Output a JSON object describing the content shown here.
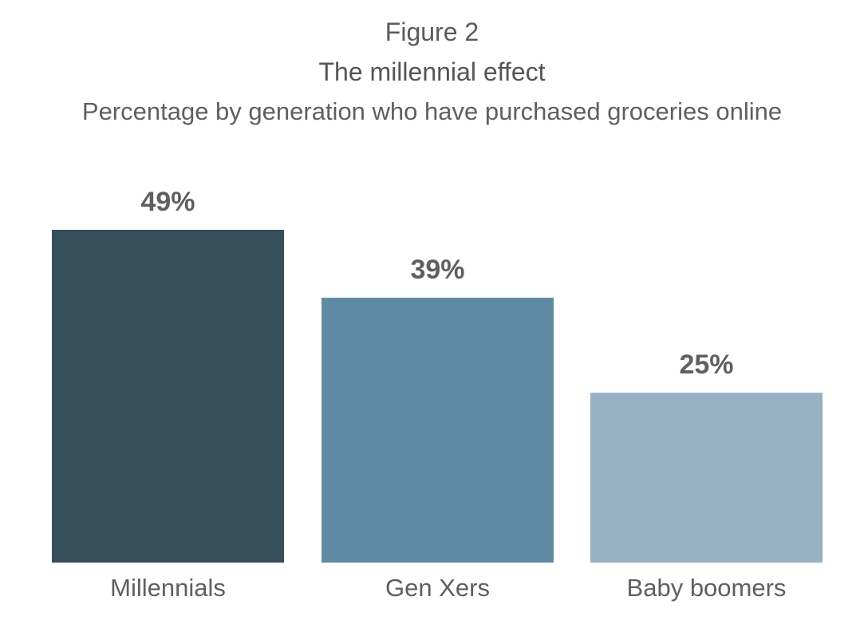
{
  "figure_label": "Figure 2",
  "title": "The millennial effect",
  "subtitle": "Percentage by generation who have purchased groceries online",
  "chart_data": {
    "type": "bar",
    "categories": [
      "Millennials",
      "Gen Xers",
      "Baby boomers"
    ],
    "values": [
      49,
      39,
      25
    ],
    "value_labels": [
      "49%",
      "39%",
      "25%"
    ],
    "colors": [
      "#374e5b",
      "#5f8aa3",
      "#97b1c3"
    ],
    "ylim": [
      0,
      49
    ],
    "grid": false,
    "legend": "none",
    "xlabel": "",
    "ylabel": ""
  }
}
